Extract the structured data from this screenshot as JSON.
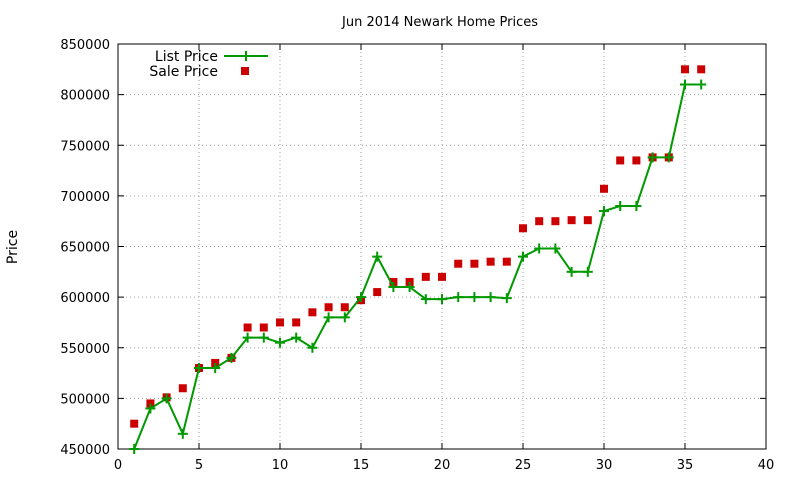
{
  "chart_data": {
    "type": "line",
    "title": "Jun 2014 Newark Home Prices",
    "xlabel": "",
    "ylabel": "Price",
    "xlim": [
      0,
      40
    ],
    "ylim": [
      450000,
      850000
    ],
    "x_ticks": [
      0,
      5,
      10,
      15,
      20,
      25,
      30,
      35,
      40
    ],
    "y_ticks": [
      450000,
      500000,
      550000,
      600000,
      650000,
      700000,
      750000,
      800000,
      850000
    ],
    "grid": true,
    "legend_position": "top-left",
    "series": [
      {
        "name": "List Price",
        "style": "line-with-plus-markers",
        "color": "#009900",
        "x": [
          1,
          2,
          3,
          4,
          5,
          6,
          7,
          8,
          9,
          10,
          11,
          12,
          13,
          14,
          15,
          16,
          17,
          18,
          19,
          20,
          21,
          22,
          23,
          24,
          25,
          26,
          27,
          28,
          29,
          30,
          31,
          32,
          33,
          34,
          35,
          36
        ],
        "y": [
          450000,
          490000,
          500000,
          465000,
          530000,
          530000,
          540000,
          560000,
          560000,
          555000,
          560000,
          550000,
          580000,
          580000,
          600000,
          640000,
          610000,
          610000,
          598000,
          598000,
          600000,
          600000,
          600000,
          599000,
          640000,
          648000,
          648000,
          625000,
          625000,
          685000,
          690000,
          690000,
          738000,
          738000,
          810000,
          810000
        ]
      },
      {
        "name": "Sale Price",
        "style": "square-markers",
        "color": "#cc0000",
        "x": [
          1,
          2,
          3,
          4,
          5,
          6,
          7,
          8,
          9,
          10,
          11,
          12,
          13,
          14,
          15,
          16,
          17,
          18,
          19,
          20,
          21,
          22,
          23,
          24,
          25,
          26,
          27,
          28,
          29,
          30,
          31,
          32,
          33,
          34,
          35,
          36
        ],
        "y": [
          475000,
          495000,
          501000,
          510000,
          530000,
          535000,
          540000,
          570000,
          570000,
          575000,
          575000,
          585000,
          590000,
          590000,
          597000,
          605000,
          615000,
          615000,
          620000,
          620000,
          633000,
          633000,
          635000,
          635000,
          668000,
          675000,
          675000,
          676000,
          676000,
          707000,
          735000,
          735000,
          738000,
          738000,
          825000,
          825000
        ]
      }
    ]
  }
}
